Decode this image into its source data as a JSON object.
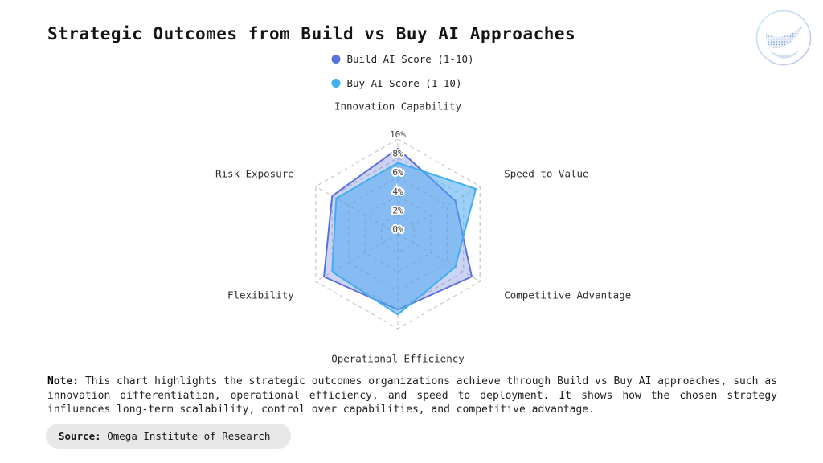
{
  "title": "Strategic Outcomes from Build vs Buy AI Approaches",
  "logo_icon": "dotted-wave-logo",
  "legend": [
    {
      "label": "Build AI Score (1-10)",
      "color": "#5b72dc"
    },
    {
      "label": "Buy AI Score (1-10)",
      "color": "#41aeee"
    }
  ],
  "chart_data": {
    "type": "radar",
    "categories": [
      "Innovation Capability",
      "Speed to Value",
      "Competitive Advantage",
      "Operational Efficiency",
      "Flexibility",
      "Risk Exposure"
    ],
    "series": [
      {
        "name": "Build AI Score (1-10)",
        "values": [
          9,
          7,
          9,
          8,
          9,
          8
        ],
        "stroke": "#5b72dc",
        "fill": "rgba(99,118,221,0.32)"
      },
      {
        "name": "Buy AI Score (1-10)",
        "values": [
          7.5,
          9.5,
          7,
          8.5,
          8,
          7.5
        ],
        "stroke": "#41aeee",
        "fill": "rgba(77,170,240,0.55)"
      }
    ],
    "ticks": [
      "0%",
      "2%",
      "4%",
      "6%",
      "8%",
      "10%"
    ],
    "tick_values": [
      0,
      2,
      4,
      6,
      8,
      10
    ],
    "rmax": 10,
    "grid": {
      "style": "dashed",
      "color": "#c7c7c7"
    },
    "legend_position": "top"
  },
  "note": {
    "label": "Note:",
    "text": " This chart highlights the strategic outcomes organizations achieve through Build vs Buy AI approaches, such as innovation differentiation, operational efficiency, and speed to deployment. It shows how the chosen strategy influences long-term scalability, control over capabilities, and competitive advantage."
  },
  "source": {
    "label": "Source:",
    "text": " Omega Institute of Research"
  }
}
